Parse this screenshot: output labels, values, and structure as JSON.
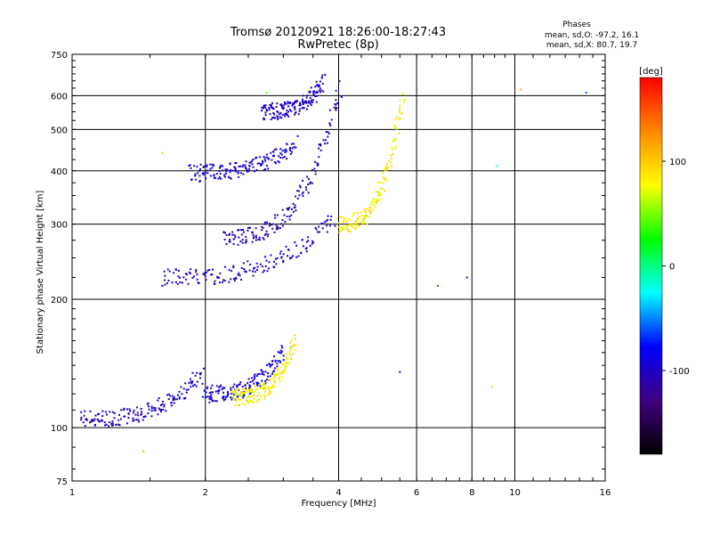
{
  "header": {
    "title_line1": "Tromsø 20120921 18:26:00-18:27:43",
    "title_line2": "RwPretec (8p)"
  },
  "info": {
    "heading": "Phases",
    "line_o": "mean, sd,O: -97.2, 16.1",
    "line_x": "mean, sd,X: 80.7, 19.7"
  },
  "chart_data": {
    "type": "scatter",
    "xlabel": "Frequency [MHz]",
    "ylabel": "Stationary phase Virtual Height [km]",
    "xscale": "log",
    "yscale": "log",
    "xlim": [
      1,
      16
    ],
    "ylim": [
      75,
      750
    ],
    "x_ticks": [
      1,
      2,
      4,
      6,
      8,
      10,
      16
    ],
    "y_ticks": [
      75,
      100,
      200,
      300,
      400,
      500,
      600,
      750
    ],
    "grid": true,
    "colorbar": {
      "label": "[deg]",
      "range": [
        -180,
        180
      ],
      "ticks": [
        100,
        0,
        -100
      ],
      "colors_top_to_bottom": [
        "#ff0000",
        "#ff8800",
        "#ffff00",
        "#00ff00",
        "#00ffff",
        "#0000ff",
        "#400080",
        "#000000"
      ]
    },
    "traces": [
      {
        "component": "O",
        "x_range": [
          1.05,
          1.98
        ],
        "heights": [
          105,
          135
        ],
        "phase": -100
      },
      {
        "component": "O",
        "x_range": [
          1.98,
          3.0
        ],
        "heights": [
          120,
          150
        ],
        "phase": -95
      },
      {
        "component": "O",
        "x_range": [
          1.6,
          3.9
        ],
        "heights": [
          225,
          310
        ],
        "phase": -100
      },
      {
        "component": "O",
        "x_range": [
          2.2,
          4.05
        ],
        "heights": [
          280,
          630
        ],
        "phase": -110
      },
      {
        "component": "O",
        "x_range": [
          1.85,
          3.2
        ],
        "heights": [
          395,
          465
        ],
        "phase": -95
      },
      {
        "component": "O",
        "x_range": [
          2.7,
          3.7
        ],
        "heights": [
          550,
          645
        ],
        "phase": -100
      },
      {
        "component": "X",
        "x_range": [
          2.3,
          3.2
        ],
        "heights": [
          118,
          160
        ],
        "phase": 80
      },
      {
        "component": "X",
        "x_range": [
          4.0,
          5.6
        ],
        "heights": [
          300,
          600
        ],
        "phase": 80
      }
    ],
    "scatter_points": [
      {
        "x": 1.6,
        "y": 440,
        "phase": 60
      },
      {
        "x": 2.75,
        "y": 610,
        "phase": 40
      },
      {
        "x": 6.7,
        "y": 215,
        "phase": 170
      },
      {
        "x": 7.8,
        "y": 225,
        "phase": -100
      },
      {
        "x": 10.3,
        "y": 620,
        "phase": 110
      },
      {
        "x": 9.1,
        "y": 410,
        "phase": -20
      },
      {
        "x": 14.5,
        "y": 610,
        "phase": -60
      },
      {
        "x": 5.5,
        "y": 135,
        "phase": -110
      },
      {
        "x": 8.9,
        "y": 125,
        "phase": 60
      },
      {
        "x": 1.45,
        "y": 88,
        "phase": 110
      }
    ]
  }
}
